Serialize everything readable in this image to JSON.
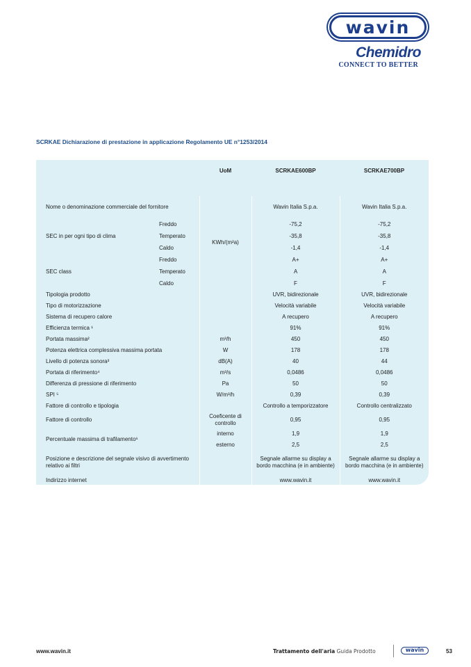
{
  "logo": {
    "brand": "wavin",
    "sub_brand": "Chemidro",
    "tagline": "CONNECT TO BETTER",
    "color": "#1d3e8c"
  },
  "title": "SCRKAE Dichiarazione di prestazione in applicazione Regolamento UE n°1253/2014",
  "table": {
    "headers": {
      "uom": "UoM",
      "model1": "SCRKAE600BP",
      "model2": "SCRKAE700BP"
    },
    "supplier": {
      "label": "Nome o denominazione commerciale del fornitore",
      "v1": "Wavin Italia S.p.a.",
      "v2": "Wavin Italia S.p.a."
    },
    "sec": {
      "label": "SEC in per ogni tipo di clima",
      "uom": "KWh/(m²a)",
      "rows": [
        {
          "climate": "Freddo",
          "v1": "-75,2",
          "v2": "-75,2"
        },
        {
          "climate": "Temperato",
          "v1": "-35,8",
          "v2": "-35,8"
        },
        {
          "climate": "Caldo",
          "v1": "-1,4",
          "v2": "-1,4"
        }
      ]
    },
    "sec_class": {
      "label": "SEC class",
      "rows": [
        {
          "climate": "Freddo",
          "v1": "A+",
          "v2": "A+"
        },
        {
          "climate": "Temperato",
          "v1": "A",
          "v2": "A"
        },
        {
          "climate": "Caldo",
          "v1": "F",
          "v2": "F"
        }
      ]
    },
    "rows": [
      {
        "label": "Tipologia prodotto",
        "uom": "",
        "v1": "UVR, bidirezionale",
        "v2": "UVR, bidirezionale"
      },
      {
        "label": "Tipo di motorizzazione",
        "uom": "",
        "v1": "Velocità variabile",
        "v2": "Velocità variabile"
      },
      {
        "label": "Sistema di recupero calore",
        "uom": "",
        "v1": "A recupero",
        "v2": "A recupero"
      },
      {
        "label": "Efficienza termica ¹",
        "uom": "",
        "v1": "91%",
        "v2": "91%"
      },
      {
        "label": "Portata massima²",
        "uom": "m³/h",
        "v1": "450",
        "v2": "450"
      },
      {
        "label": "Potenza elettrica complessiva massima portata",
        "uom": "W",
        "v1": "178",
        "v2": "178"
      },
      {
        "label": "Livello di potenza sonora³",
        "uom": "dB(A)",
        "v1": "40",
        "v2": "44"
      },
      {
        "label": "Portata di riferimento⁴",
        "uom": "m³/s",
        "v1": "0,0486",
        "v2": "0,0486"
      },
      {
        "label": "Differenza di pressione di riferimento",
        "uom": "Pa",
        "v1": "50",
        "v2": "50"
      },
      {
        "label": "SPI ⁵",
        "uom": "W/m³/h",
        "v1": "0,39",
        "v2": "0,39"
      },
      {
        "label": "Fattore di controllo e tipologia",
        "uom": "",
        "v1": "Controllo a temporizzatore",
        "v2": "Controllo centralizzato"
      },
      {
        "label": "Fattore di controllo",
        "uom": "Coeficente di controllo",
        "v1": "0,95",
        "v2": "0,95"
      }
    ],
    "leakage": {
      "label": "Percentuale massima di trafilamento⁶",
      "rows": [
        {
          "uom": "interno",
          "v1": "1,9",
          "v2": "1,9"
        },
        {
          "uom": "esterno",
          "v1": "2,5",
          "v2": "2,5"
        }
      ]
    },
    "filter": {
      "label": "Posizione e descrizione del segnale visivo di avvertimento relativo ai filtri",
      "v1": "Segnale allarme su display a bordo macchina (e in ambiente)",
      "v2": "Segnale allarme su display a bordo macchina (e in ambiente)"
    },
    "web": {
      "label": "Indirizzo internet",
      "v1": "www.wavin.it",
      "v2": "www.wavin.it"
    }
  },
  "footer": {
    "url": "www.wavin.it",
    "section": "Trattamento dell'aria",
    "guide": "Guida Prodotto",
    "brand": "wavin",
    "page": "53"
  }
}
